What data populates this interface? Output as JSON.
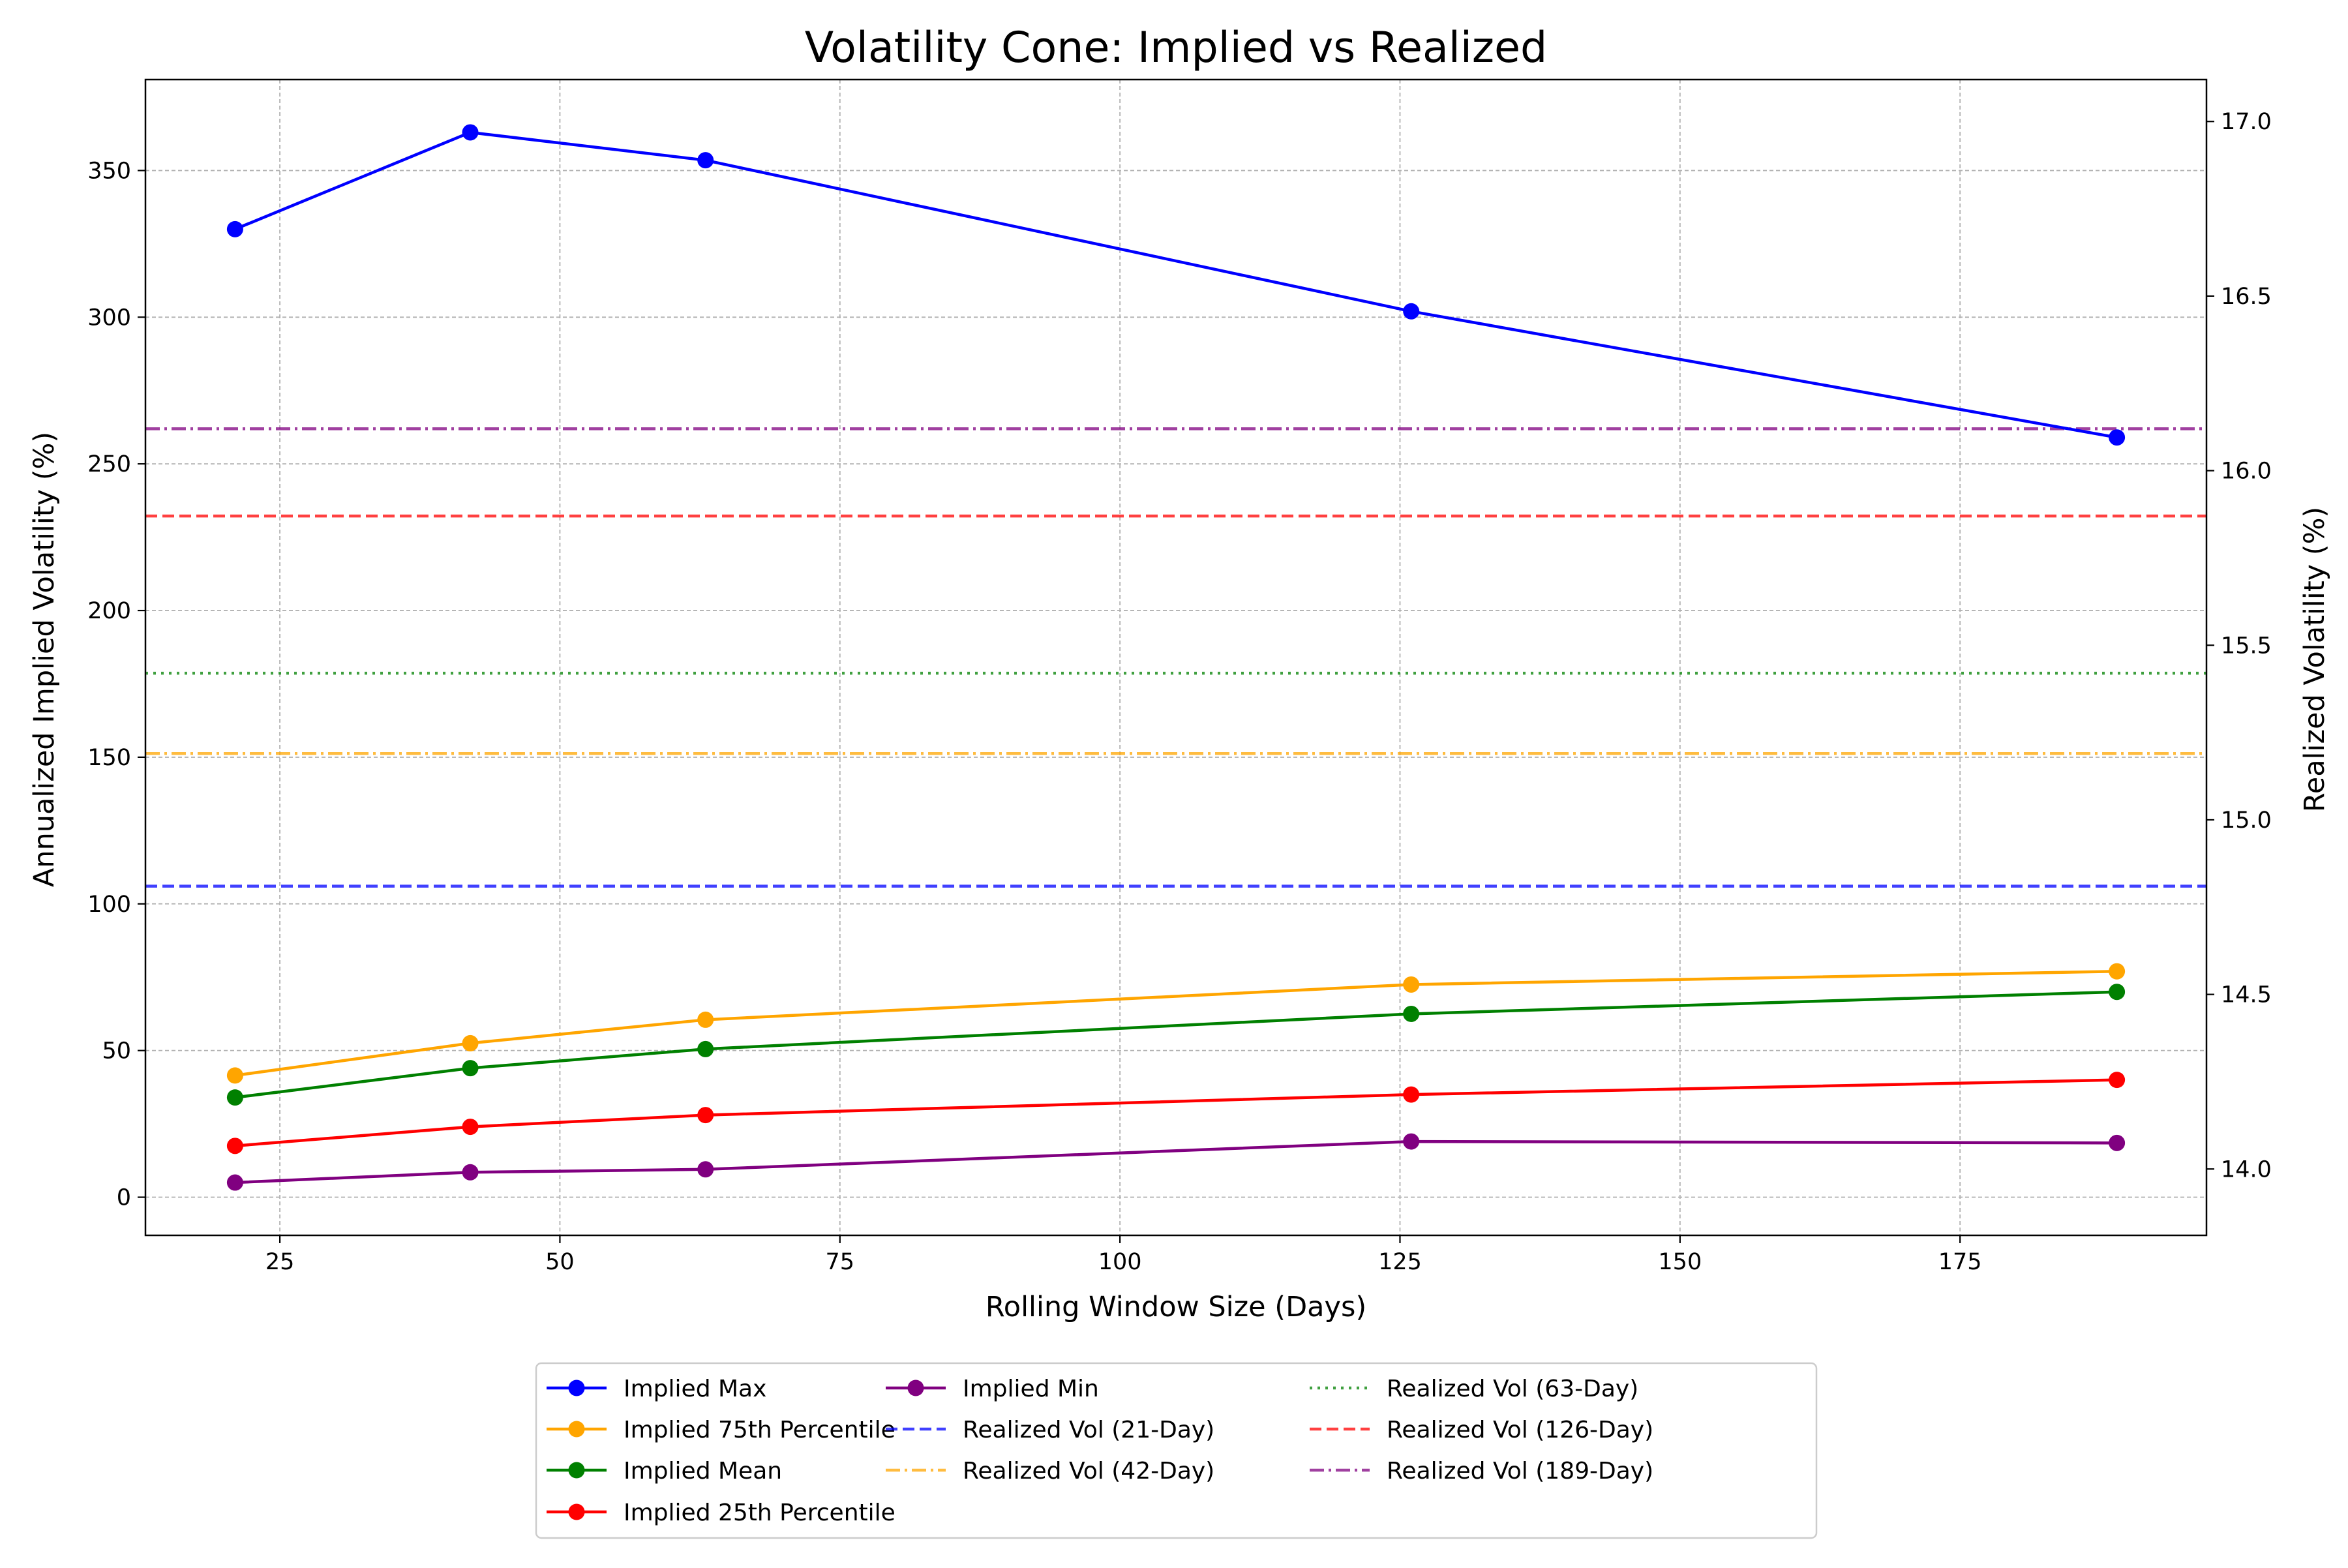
{
  "chart_data": {
    "type": "line",
    "title": "Volatility Cone: Implied vs Realized",
    "xlabel": "Rolling Window Size (Days)",
    "ylabel": "Annualized Implied Volatility (%)",
    "y2label": "Realized Volatility (%)",
    "x": [
      21,
      42,
      63,
      126,
      189
    ],
    "xlim": [
      13,
      197
    ],
    "ylim": [
      -13,
      381
    ],
    "y2lim": [
      13.81,
      17.12
    ],
    "xticks": [
      "25",
      "50",
      "75",
      "100",
      "125",
      "150",
      "175"
    ],
    "xtick_values": [
      25,
      50,
      75,
      100,
      125,
      150,
      175
    ],
    "yticks": [
      "0",
      "50",
      "100",
      "150",
      "200",
      "250",
      "300",
      "350"
    ],
    "ytick_values": [
      0,
      50,
      100,
      150,
      200,
      250,
      300,
      350
    ],
    "y2ticks": [
      "14.0",
      "14.5",
      "15.0",
      "15.5",
      "16.0",
      "16.5",
      "17.0"
    ],
    "y2tick_values": [
      14.0,
      14.5,
      15.0,
      15.5,
      16.0,
      16.5,
      17.0
    ],
    "grid": true,
    "legend_placement": "bottom-center",
    "series": [
      {
        "name": "Implied Max",
        "axis": "left",
        "values": [
          330,
          363,
          353.5,
          302,
          259
        ],
        "color": "#0000ff",
        "style": "solid-marker"
      },
      {
        "name": "Implied 75th Percentile",
        "axis": "left",
        "values": [
          41.5,
          52.5,
          60.5,
          72.5,
          77
        ],
        "color": "#ffa500",
        "style": "solid-marker"
      },
      {
        "name": "Implied Mean",
        "axis": "left",
        "values": [
          34,
          44,
          50.5,
          62.5,
          70
        ],
        "color": "#008000",
        "style": "solid-marker"
      },
      {
        "name": "Implied 25th Percentile",
        "axis": "left",
        "values": [
          17.5,
          24,
          28,
          35,
          40
        ],
        "color": "#ff0000",
        "style": "solid-marker"
      },
      {
        "name": "Implied Min",
        "axis": "left",
        "values": [
          5,
          8.5,
          9.5,
          19,
          18.5
        ],
        "color": "#800080",
        "style": "solid-marker"
      },
      {
        "name": "Realized Vol (21-Day)",
        "axis": "right",
        "value": 14.81,
        "color": "#0000ff",
        "style": "dashed"
      },
      {
        "name": "Realized Vol (42-Day)",
        "axis": "right",
        "value": 15.19,
        "color": "#ffa500",
        "style": "dashdot"
      },
      {
        "name": "Realized Vol (63-Day)",
        "axis": "right",
        "value": 15.42,
        "color": "#008000",
        "style": "dotted"
      },
      {
        "name": "Realized Vol (126-Day)",
        "axis": "right",
        "value": 15.87,
        "color": "#ff0000",
        "style": "dashed"
      },
      {
        "name": "Realized Vol (189-Day)",
        "axis": "right",
        "value": 16.12,
        "color": "#800080",
        "style": "dashdot"
      }
    ]
  }
}
